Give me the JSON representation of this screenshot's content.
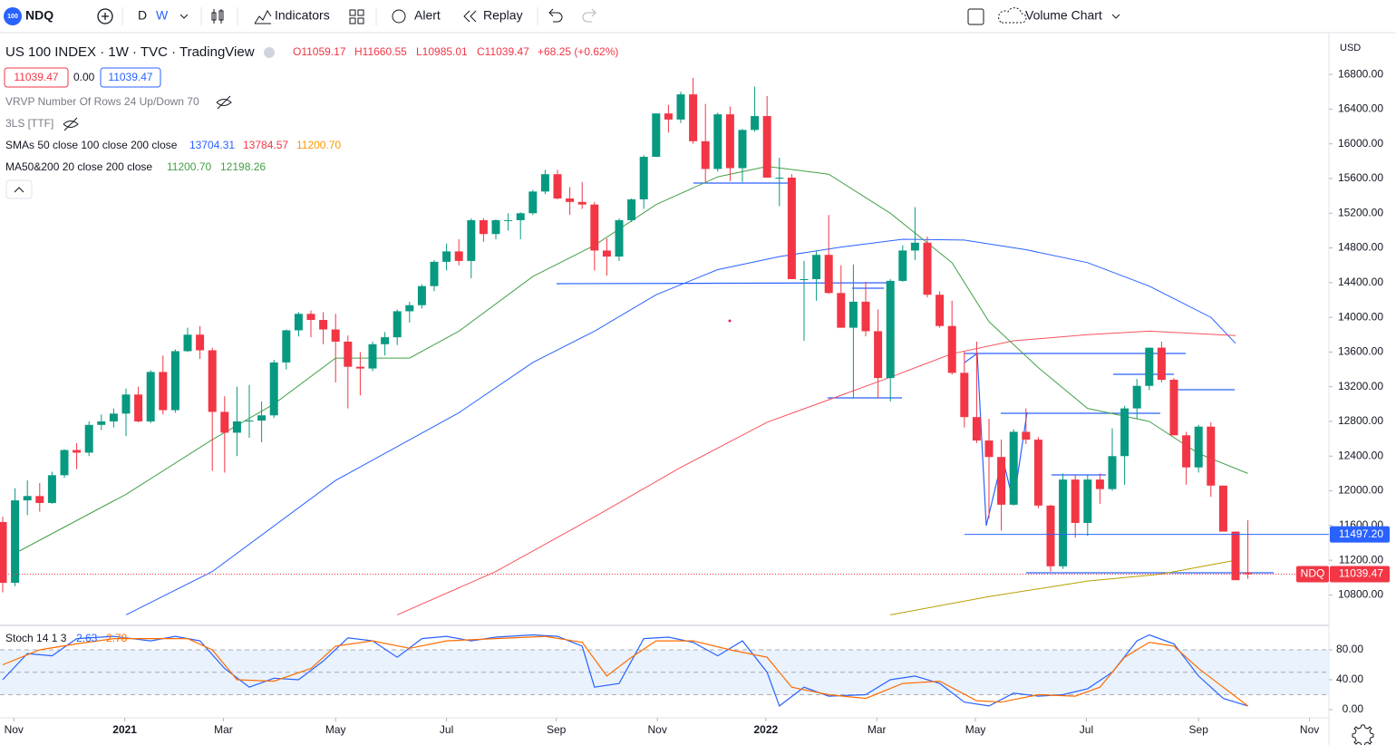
{
  "toolbar": {
    "logo": "100",
    "symbol": "NDQ",
    "intervals": [
      "D",
      "W"
    ],
    "indicators": "Indicators",
    "alert": "Alert",
    "replay": "Replay",
    "layout": "Volume Chart"
  },
  "legend": {
    "title": "US 100 INDEX · 1W · TVC · TradingView",
    "open": "O11059.17",
    "high": "H11660.55",
    "low": "L10985.01",
    "close": "C11039.47",
    "change": "+68.25 (+0.62%)",
    "bid": "11039.47",
    "spread": "0.00",
    "ask": "11039.47",
    "vrvp": "VRVP Number Of Rows 24 Up/Down 70",
    "three_ls": "3LS [TTF]",
    "smas": {
      "label": "SMAs 50 close 100 close 200 close",
      "values": [
        "13704.31",
        "13784.57",
        "11200.70"
      ]
    },
    "ma": {
      "label": "MA50&200 20 close 200 close",
      "values": [
        "11200.70",
        "12198.26"
      ]
    },
    "stoch": {
      "label": "Stoch 14 1 3",
      "values": [
        "2.63",
        "2.78"
      ]
    }
  },
  "chart_data": [
    {
      "type": "candlestick",
      "currency": "USD",
      "up_color": "#089981",
      "down_color": "#f23645",
      "ylim": [
        10470,
        17240
      ],
      "yticks": [
        {
          "value": 10800,
          "label": "10800.00"
        },
        {
          "value": 11200,
          "label": "11200.00"
        },
        {
          "value": 11600,
          "label": "11600.00"
        },
        {
          "value": 12000,
          "label": "12000.00"
        },
        {
          "value": 12400,
          "label": "12400.00"
        },
        {
          "value": 12800,
          "label": "12800.00"
        },
        {
          "value": 13200,
          "label": "13200.00"
        },
        {
          "value": 13600,
          "label": "13600.00"
        },
        {
          "value": 14000,
          "label": "14000.00"
        },
        {
          "value": 14400,
          "label": "14400.00"
        },
        {
          "value": 14800,
          "label": "14800.00"
        },
        {
          "value": 15200,
          "label": "15200.00"
        },
        {
          "value": 15600,
          "label": "15600.00"
        },
        {
          "value": 16000,
          "label": "16000.00"
        },
        {
          "value": 16400,
          "label": "16400.00"
        },
        {
          "value": 16800,
          "label": "16800.00"
        }
      ],
      "xticks": [
        {
          "value": 0.9,
          "label": "Nov"
        },
        {
          "value": 9.9,
          "label": "2021"
        },
        {
          "value": 17.9,
          "label": "Mar"
        },
        {
          "value": 27,
          "label": "May"
        },
        {
          "value": 36,
          "label": "Jul"
        },
        {
          "value": 44.9,
          "label": "Sep"
        },
        {
          "value": 53.1,
          "label": "Nov"
        },
        {
          "value": 61.9,
          "label": "2022"
        },
        {
          "value": 70.9,
          "label": "Mar"
        },
        {
          "value": 78.9,
          "label": "May"
        },
        {
          "value": 87.9,
          "label": "Jul"
        },
        {
          "value": 97,
          "label": "Sep"
        },
        {
          "value": 106,
          "label": "Nov"
        }
      ],
      "ohlc": [
        [
          11640,
          11700,
          10830,
          10940
        ],
        [
          10940,
          12030,
          10900,
          11890
        ],
        [
          11890,
          12120,
          11720,
          11940
        ],
        [
          11940,
          12090,
          11760,
          11860
        ],
        [
          11860,
          12220,
          11850,
          12180
        ],
        [
          12180,
          12480,
          12150,
          12470
        ],
        [
          12470,
          12550,
          12250,
          12440
        ],
        [
          12440,
          12800,
          12400,
          12760
        ],
        [
          12760,
          12880,
          12700,
          12800
        ],
        [
          12800,
          12950,
          12730,
          12890
        ],
        [
          12890,
          13180,
          12630,
          13110
        ],
        [
          13110,
          13200,
          12790,
          12800
        ],
        [
          12800,
          13390,
          12780,
          13370
        ],
        [
          13370,
          13560,
          12880,
          12930
        ],
        [
          12930,
          13630,
          12900,
          13610
        ],
        [
          13610,
          13880,
          13600,
          13800
        ],
        [
          13800,
          13900,
          13520,
          13620
        ],
        [
          13620,
          13650,
          12230,
          12910
        ],
        [
          12910,
          13090,
          12210,
          12670
        ],
        [
          12670,
          13200,
          12400,
          12800
        ],
        [
          12800,
          13220,
          12610,
          12810
        ],
        [
          12810,
          13030,
          12560,
          12870
        ],
        [
          12870,
          13510,
          12840,
          13480
        ],
        [
          13480,
          13860,
          13400,
          13850
        ],
        [
          13850,
          14060,
          13780,
          14040
        ],
        [
          14040,
          14080,
          13770,
          13970
        ],
        [
          13970,
          14060,
          13690,
          13860
        ],
        [
          13860,
          14040,
          13250,
          13720
        ],
        [
          13720,
          13790,
          12950,
          13430
        ],
        [
          13430,
          13600,
          13100,
          13410
        ],
        [
          13410,
          13720,
          13380,
          13690
        ],
        [
          13690,
          13830,
          13560,
          13770
        ],
        [
          13770,
          14090,
          13680,
          14070
        ],
        [
          14070,
          14180,
          13940,
          14140
        ],
        [
          14140,
          14380,
          14100,
          14360
        ],
        [
          14360,
          14660,
          14300,
          14640
        ],
        [
          14640,
          14850,
          14540,
          14760
        ],
        [
          14760,
          14900,
          14600,
          14650
        ],
        [
          14650,
          15140,
          14450,
          15120
        ],
        [
          15120,
          15140,
          14870,
          14960
        ],
        [
          14960,
          15130,
          14900,
          15120
        ],
        [
          15120,
          15200,
          15000,
          15120
        ],
        [
          15120,
          15210,
          14900,
          15200
        ],
        [
          15200,
          15470,
          15180,
          15450
        ],
        [
          15450,
          15700,
          15420,
          15650
        ],
        [
          15650,
          15700,
          15360,
          15370
        ],
        [
          15370,
          15500,
          15180,
          15330
        ],
        [
          15330,
          15560,
          15250,
          15300
        ],
        [
          15300,
          15330,
          14540,
          14770
        ],
        [
          14770,
          14910,
          14480,
          14700
        ],
        [
          14700,
          15140,
          14650,
          15120
        ],
        [
          15120,
          15370,
          15100,
          15360
        ],
        [
          15360,
          15870,
          15250,
          15850
        ],
        [
          15850,
          16350,
          15850,
          16350
        ],
        [
          16350,
          16450,
          16130,
          16280
        ],
        [
          16280,
          16600,
          16240,
          16570
        ],
        [
          16570,
          16760,
          16000,
          16030
        ],
        [
          16030,
          16460,
          15560,
          15710
        ],
        [
          15710,
          16360,
          15680,
          16340
        ],
        [
          16340,
          16430,
          15570,
          15720
        ],
        [
          15720,
          16170,
          15560,
          16160
        ],
        [
          16160,
          16660,
          16140,
          16320
        ],
        [
          16320,
          16550,
          15610,
          15610
        ],
        [
          15610,
          15840,
          15280,
          15610
        ],
        [
          15610,
          15650,
          14440,
          14440
        ],
        [
          14440,
          14650,
          13730,
          14440
        ],
        [
          14440,
          14770,
          14190,
          14720
        ],
        [
          14720,
          15180,
          14270,
          14280
        ],
        [
          14280,
          14600,
          13880,
          13880
        ],
        [
          13880,
          14610,
          13070,
          14180
        ],
        [
          14180,
          14410,
          13780,
          13840
        ],
        [
          13840,
          14090,
          13070,
          13300
        ],
        [
          13300,
          14440,
          13030,
          14420
        ],
        [
          14420,
          14830,
          14410,
          14770
        ],
        [
          14770,
          15270,
          14660,
          14860
        ],
        [
          14860,
          14930,
          14230,
          14260
        ],
        [
          14260,
          14300,
          13880,
          13900
        ],
        [
          13900,
          14190,
          13340,
          13360
        ],
        [
          13360,
          13610,
          12730,
          12850
        ],
        [
          12850,
          13720,
          12550,
          12580
        ],
        [
          12580,
          12830,
          11680,
          12390
        ],
        [
          12390,
          12590,
          11540,
          11840
        ],
        [
          11840,
          12710,
          11830,
          12680
        ],
        [
          12680,
          12950,
          12540,
          12590
        ],
        [
          12590,
          12620,
          11800,
          11830
        ],
        [
          11830,
          11840,
          11070,
          11130
        ],
        [
          11130,
          12200,
          11100,
          12130
        ],
        [
          12130,
          12190,
          11460,
          11630
        ],
        [
          11630,
          12180,
          11480,
          12130
        ],
        [
          12130,
          12200,
          11850,
          12020
        ],
        [
          12020,
          12720,
          12000,
          12400
        ],
        [
          12400,
          12980,
          12070,
          12950
        ],
        [
          12950,
          13290,
          12830,
          13210
        ],
        [
          13210,
          13650,
          13160,
          13650
        ],
        [
          13650,
          13720,
          13250,
          13280
        ],
        [
          13280,
          13300,
          12640,
          12640
        ],
        [
          12640,
          12680,
          12070,
          12270
        ],
        [
          12270,
          12760,
          12210,
          12740
        ],
        [
          12740,
          12790,
          11930,
          12060
        ],
        [
          12060,
          12060,
          11530,
          11530
        ],
        [
          11530,
          11530,
          10970,
          10970
        ],
        [
          11059.17,
          11660.55,
          10985.01,
          11039.47
        ]
      ],
      "lines": [
        {
          "color": "#2962ff",
          "x": [
            10,
            17,
            27,
            37,
            43,
            48,
            53,
            58,
            63,
            68,
            73,
            78,
            83,
            88,
            93,
            98,
            100
          ],
          "values": [
            10570,
            11070,
            12120,
            12900,
            13480,
            13840,
            14260,
            14550,
            14700,
            14810,
            14900,
            14890,
            14780,
            14630,
            14360,
            14000,
            13700
          ]
        },
        {
          "color": "#f7525f",
          "x": [
            32,
            40,
            48,
            55,
            62,
            67,
            72,
            77,
            82,
            88,
            93,
            100
          ],
          "values": [
            10570,
            11070,
            11700,
            12270,
            12790,
            13050,
            13310,
            13580,
            13730,
            13800,
            13840,
            13790
          ]
        },
        {
          "color": "#b8a000",
          "x": [
            72,
            80,
            88,
            94,
            100
          ],
          "values": [
            10570,
            10780,
            10960,
            11040,
            11200
          ]
        },
        {
          "color": "#43a047",
          "x": [
            1,
            10,
            17,
            22,
            27,
            33,
            37,
            43,
            48,
            53,
            58,
            62,
            67,
            72,
            77,
            80,
            84,
            88,
            93,
            97,
            101
          ],
          "values": [
            11280,
            11960,
            12590,
            13000,
            13530,
            13530,
            13840,
            14470,
            14830,
            15300,
            15620,
            15740,
            15650,
            15200,
            14630,
            13950,
            13420,
            12950,
            12800,
            12430,
            12200
          ]
        }
      ],
      "hline": {
        "value": 11497.2,
        "label": "11497.20",
        "color": "#2962ff"
      }
    },
    {
      "type": "line",
      "ylim": [
        -8.5,
        110.3
      ],
      "band": [
        20,
        80
      ],
      "midline": 50,
      "yticks": [
        {
          "value": 0,
          "label": "0.00"
        },
        {
          "value": 40,
          "label": "40.00"
        },
        {
          "value": 80,
          "label": "80.00"
        }
      ],
      "series": [
        {
          "color": "#2962ff",
          "x": [
            0,
            2,
            4,
            6,
            9,
            12,
            14,
            16,
            18,
            20,
            22,
            24,
            26,
            28,
            30,
            32,
            34,
            36,
            38,
            40,
            43,
            45,
            47,
            48,
            50,
            52,
            54,
            56,
            58,
            60,
            62,
            63,
            65,
            67,
            70,
            72,
            74,
            76,
            78,
            80,
            82,
            84,
            86,
            88,
            90,
            92,
            93,
            95,
            97,
            99,
            101
          ],
          "values": [
            40,
            75,
            72,
            95,
            98,
            92,
            98,
            92,
            55,
            30,
            42,
            40,
            65,
            96,
            92,
            70,
            95,
            98,
            92,
            97,
            100,
            98,
            85,
            30,
            35,
            95,
            97,
            90,
            72,
            92,
            50,
            5,
            30,
            18,
            20,
            40,
            45,
            35,
            10,
            5,
            22,
            18,
            20,
            28,
            50,
            92,
            100,
            88,
            45,
            15,
            5
          ]
        },
        {
          "color": "#ff6d00",
          "x": [
            0,
            3,
            6,
            9,
            12,
            15,
            17,
            19,
            22,
            25,
            27,
            30,
            33,
            36,
            40,
            44,
            47,
            49,
            51,
            53,
            56,
            59,
            62,
            64,
            67,
            70,
            73,
            76,
            79,
            81,
            84,
            87,
            89,
            91,
            93,
            95,
            97,
            99,
            101
          ],
          "values": [
            60,
            80,
            88,
            95,
            95,
            95,
            80,
            40,
            38,
            55,
            85,
            92,
            82,
            92,
            95,
            98,
            90,
            45,
            70,
            92,
            92,
            80,
            70,
            30,
            20,
            15,
            35,
            38,
            12,
            10,
            20,
            18,
            30,
            70,
            90,
            85,
            55,
            30,
            5
          ]
        }
      ]
    }
  ]
}
